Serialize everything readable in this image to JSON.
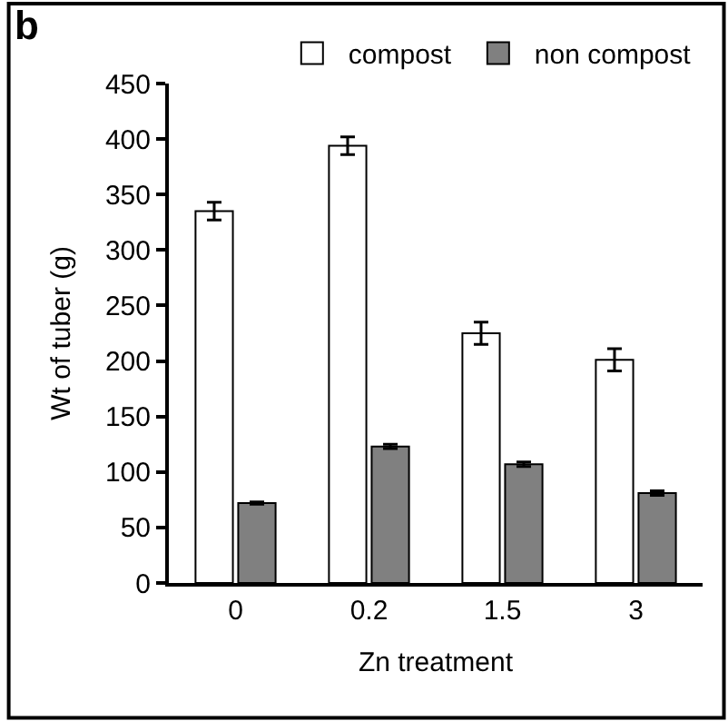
{
  "chart_data": {
    "type": "bar",
    "title": "b",
    "xlabel": "Zn treatment",
    "ylabel": "Wt of tuber (g)",
    "categories": [
      "0",
      "0.2",
      "1.5",
      "3"
    ],
    "series": [
      {
        "name": "compost",
        "color": "#ffffff",
        "values": [
          335,
          394,
          225,
          201
        ],
        "errors": [
          8,
          8,
          10,
          10
        ]
      },
      {
        "name": "non compost",
        "color": "#808080",
        "values": [
          72,
          123,
          107,
          81
        ],
        "errors": [
          1,
          2,
          2,
          2
        ]
      }
    ],
    "ylim": [
      0,
      450
    ],
    "yticks": [
      0,
      50,
      100,
      150,
      200,
      250,
      300,
      350,
      400,
      450
    ],
    "legend": "top"
  }
}
